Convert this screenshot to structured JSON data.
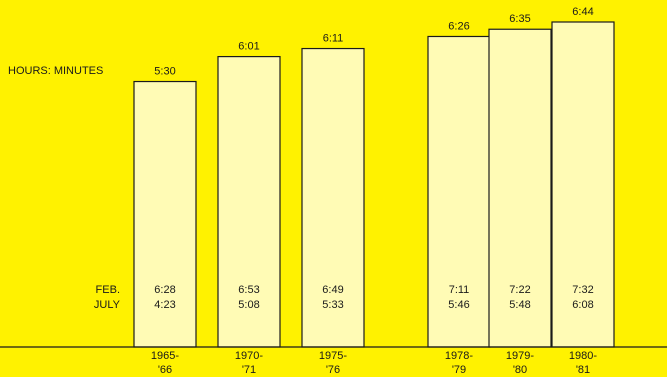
{
  "chart_data": {
    "type": "bar",
    "unit_label": "HOURS: MINUTES",
    "categories": [
      [
        "1965-",
        "'66"
      ],
      [
        "1970-",
        "'71"
      ],
      [
        "1975-",
        "'76"
      ],
      [
        "1978-",
        "'79"
      ],
      [
        "1979-",
        "'80"
      ],
      [
        "1980-",
        "'81"
      ]
    ],
    "values": [
      330,
      361,
      371,
      386,
      395,
      404
    ],
    "value_labels": [
      "5:30",
      "6:01",
      "6:11",
      "6:26",
      "6:35",
      "6:44"
    ],
    "row_labels": [
      "FEB.",
      "JULY"
    ],
    "feb_labels": [
      "6:28",
      "6:53",
      "6:49",
      "7:11",
      "7:22",
      "7:32"
    ],
    "july_labels": [
      "4:23",
      "5:08",
      "5:33",
      "5:46",
      "5:48",
      "6:08"
    ],
    "ylim": [
      0,
      404
    ],
    "colors": {
      "background": "#FFF200",
      "bar_fill": "#FFFBB5",
      "bar_stroke": "#1a1a1a",
      "text": "#1a1a1a"
    }
  }
}
